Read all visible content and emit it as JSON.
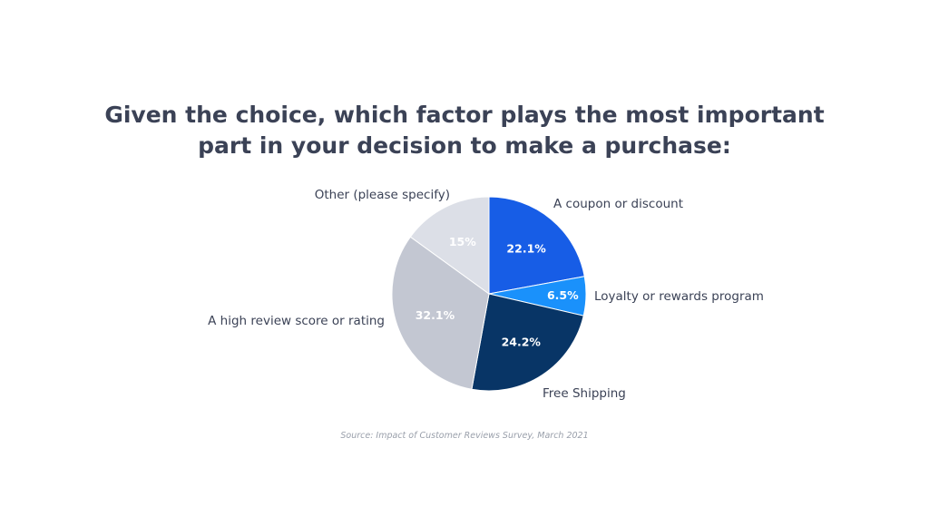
{
  "title_lines": [
    "Given the choice, which factor plays the most important",
    "part in your decision to make a purchase:"
  ],
  "source": "Source: Impact of Customer Reviews Survey, March 2021",
  "chart_data": {
    "type": "pie",
    "start": "12 o'clock",
    "direction": "clockwise",
    "slices": [
      {
        "label": "A coupon or discount",
        "value": 22.1,
        "value_label": "22.1%",
        "color": "#175de6",
        "text_color": "#ffffff"
      },
      {
        "label": "Loyalty or rewards program",
        "value": 6.5,
        "value_label": "6.5%",
        "color": "#1a91fb",
        "text_color": "#ffffff"
      },
      {
        "label": "Free Shipping",
        "value": 24.2,
        "value_label": "24.2%",
        "color": "#083566",
        "text_color": "#ffffff"
      },
      {
        "label": "A high review score or rating",
        "value": 32.1,
        "value_label": "32.1%",
        "color": "#c3c7d2",
        "text_color": "#ffffff"
      },
      {
        "label": "Other (please specify)",
        "value": 15,
        "value_label": "15%",
        "color": "#dcdfe7",
        "text_color": "#ffffff"
      }
    ]
  }
}
